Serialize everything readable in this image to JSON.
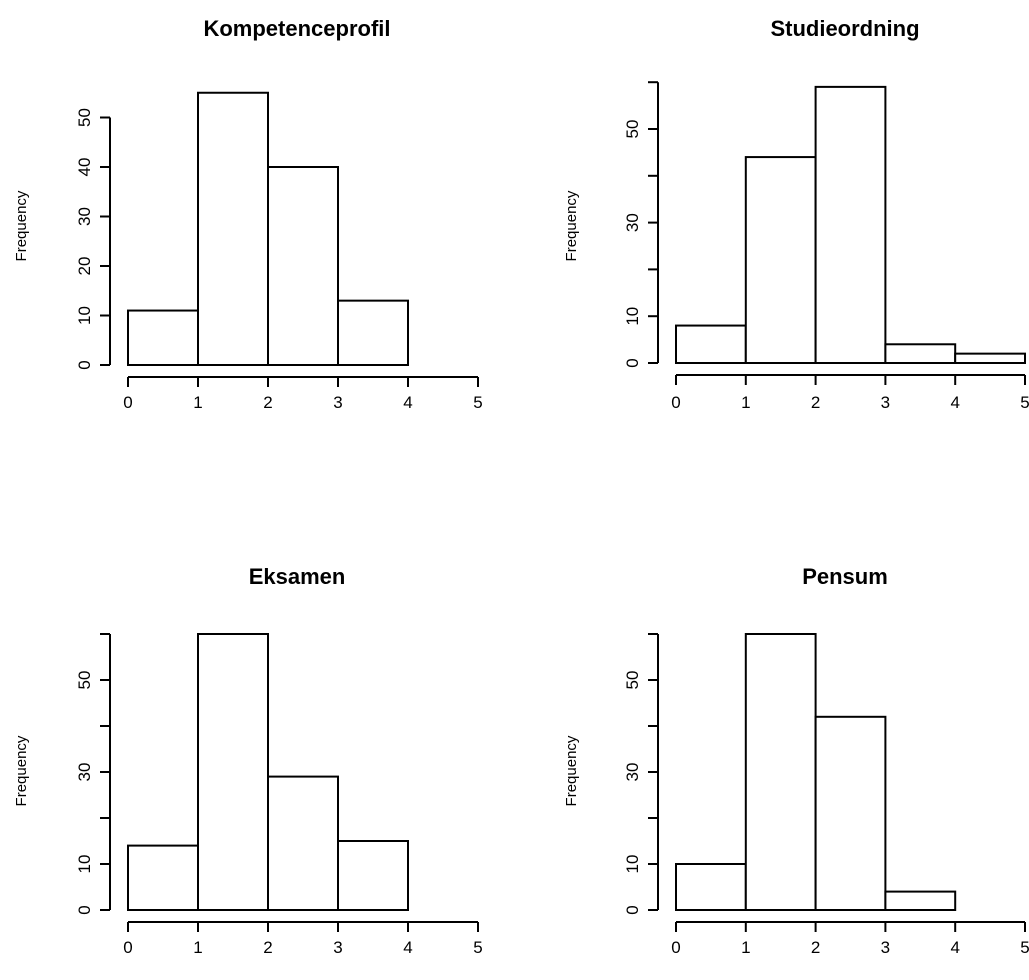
{
  "chart_data": [
    {
      "type": "bar",
      "title": "Kompetenceprofil",
      "xlabel": "",
      "ylabel": "Frequency",
      "bins": [
        [
          0,
          1
        ],
        [
          1,
          2
        ],
        [
          2,
          3
        ],
        [
          3,
          4
        ],
        [
          4,
          5
        ]
      ],
      "values": [
        11,
        55,
        40,
        13,
        0
      ],
      "xlim": [
        0,
        5
      ],
      "xticks": [
        0,
        1,
        2,
        3,
        4,
        5
      ],
      "yticks": [
        0,
        10,
        20,
        30,
        40,
        50
      ],
      "grid": false
    },
    {
      "type": "bar",
      "title": "Studieordning",
      "xlabel": "",
      "ylabel": "Frequency",
      "bins": [
        [
          0,
          1
        ],
        [
          1,
          2
        ],
        [
          2,
          3
        ],
        [
          3,
          4
        ],
        [
          4,
          5
        ]
      ],
      "values": [
        8,
        44,
        59,
        4,
        2
      ],
      "xlim": [
        0,
        5
      ],
      "xticks": [
        0,
        1,
        2,
        3,
        4,
        5
      ],
      "yticks": [
        0,
        10,
        20,
        30,
        40,
        50,
        60
      ],
      "ytick_labels_shown": [
        0,
        10,
        30,
        50
      ],
      "grid": false
    },
    {
      "type": "bar",
      "title": "Eksamen",
      "xlabel": "",
      "ylabel": "Frequency",
      "bins": [
        [
          0,
          1
        ],
        [
          1,
          2
        ],
        [
          2,
          3
        ],
        [
          3,
          4
        ],
        [
          4,
          5
        ]
      ],
      "values": [
        14,
        60,
        29,
        15,
        0
      ],
      "xlim": [
        0,
        5
      ],
      "xticks": [
        0,
        1,
        2,
        3,
        4,
        5
      ],
      "yticks": [
        0,
        10,
        20,
        30,
        40,
        50,
        60
      ],
      "ytick_labels_shown": [
        0,
        10,
        30,
        50
      ],
      "grid": false
    },
    {
      "type": "bar",
      "title": "Pensum",
      "xlabel": "",
      "ylabel": "Frequency",
      "bins": [
        [
          0,
          1
        ],
        [
          1,
          2
        ],
        [
          2,
          3
        ],
        [
          3,
          4
        ],
        [
          4,
          5
        ]
      ],
      "values": [
        10,
        60,
        42,
        4,
        0
      ],
      "xlim": [
        0,
        5
      ],
      "xticks": [
        0,
        1,
        2,
        3,
        4,
        5
      ],
      "yticks": [
        0,
        10,
        20,
        30,
        40,
        50,
        60
      ],
      "ytick_labels_shown": [
        0,
        10,
        30,
        50
      ],
      "grid": false
    }
  ]
}
